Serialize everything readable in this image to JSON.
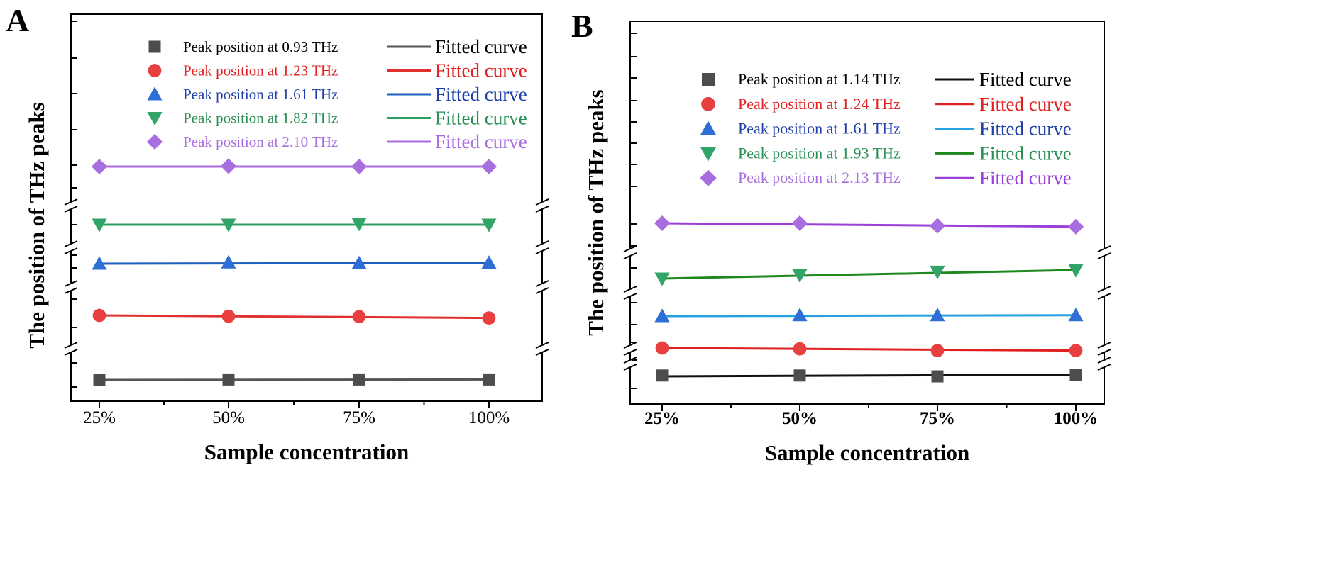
{
  "chart_data": [
    {
      "panel": "A",
      "type": "line",
      "title": "",
      "xlabel": "Sample concentration",
      "ylabel": "The position of THz peaks",
      "categories": [
        "25%",
        "50%",
        "75%",
        "100%"
      ],
      "grid": false,
      "legend_position": "top",
      "fit_label": "Fitted curve",
      "y_axis_breaks": 4,
      "series": [
        {
          "name": "Peak position at 0.93 THz",
          "marker": "square",
          "color": "#555555",
          "marker_color": "#4d4d4d",
          "values": [
            0.93,
            0.931,
            0.931,
            0.931
          ],
          "fit": [
            0.93,
            0.931
          ]
        },
        {
          "name": "Peak position at 1.23 THz",
          "marker": "circle",
          "color": "#e03030",
          "marker_color": "#e84040",
          "values": [
            1.232,
            1.23,
            1.229,
            1.226
          ],
          "fit": [
            1.232,
            1.226
          ]
        },
        {
          "name": "Peak position at 1.61 THz",
          "marker": "triangle-up",
          "color": "#1f5fc0",
          "marker_color": "#2e6fd6",
          "values": [
            1.61,
            1.613,
            1.611,
            1.612
          ],
          "fit": [
            1.61,
            1.612
          ]
        },
        {
          "name": "Peak position at 1.82 THz",
          "marker": "triangle-down",
          "color": "#2e9e5e",
          "marker_color": "#33a468",
          "values": [
            1.82,
            1.82,
            1.822,
            1.82
          ],
          "fit": [
            1.82,
            1.82
          ]
        },
        {
          "name": "Peak position at 2.10 THz",
          "marker": "diamond",
          "color": "#a86ee0",
          "marker_color": "#a86ee0",
          "values": [
            2.1,
            2.101,
            2.1,
            2.1
          ],
          "fit": [
            2.1,
            2.1
          ]
        }
      ]
    },
    {
      "panel": "B",
      "type": "line",
      "title": "",
      "xlabel": "Sample concentration",
      "ylabel": "The position of THz peaks",
      "categories": [
        "25%",
        "50%",
        "75%",
        "100%"
      ],
      "grid": false,
      "legend_position": "top",
      "fit_label": "Fitted curve",
      "y_axis_breaks": 5,
      "series": [
        {
          "name": "Peak position at 1.14 THz",
          "marker": "square",
          "color": "#111111",
          "marker_color": "#4d4d4d",
          "values": [
            1.141,
            1.141,
            1.14,
            1.142
          ],
          "fit": [
            1.14,
            1.142
          ]
        },
        {
          "name": "Peak position at 1.24 THz",
          "marker": "circle",
          "color": "#e02020",
          "marker_color": "#e84040",
          "values": [
            1.242,
            1.241,
            1.239,
            1.239
          ],
          "fit": [
            1.242,
            1.239
          ]
        },
        {
          "name": "Peak position at 1.61 THz",
          "marker": "triangle-up",
          "color": "#25a0e0",
          "marker_color": "#2e6fd6",
          "values": [
            1.61,
            1.611,
            1.611,
            1.611
          ],
          "fit": [
            1.61,
            1.611
          ]
        },
        {
          "name": "Peak position at 1.93 THz",
          "marker": "triangle-down",
          "color": "#1e8a1e",
          "marker_color": "#33a468",
          "values": [
            1.922,
            1.926,
            1.93,
            1.932
          ],
          "fit": [
            1.922,
            1.932
          ]
        },
        {
          "name": "Peak position at 2.13 THz",
          "marker": "diamond",
          "color": "#9a40d8",
          "marker_color": "#a86ee0",
          "values": [
            2.132,
            2.132,
            2.129,
            2.128
          ],
          "fit": [
            2.132,
            2.128
          ]
        }
      ]
    }
  ]
}
